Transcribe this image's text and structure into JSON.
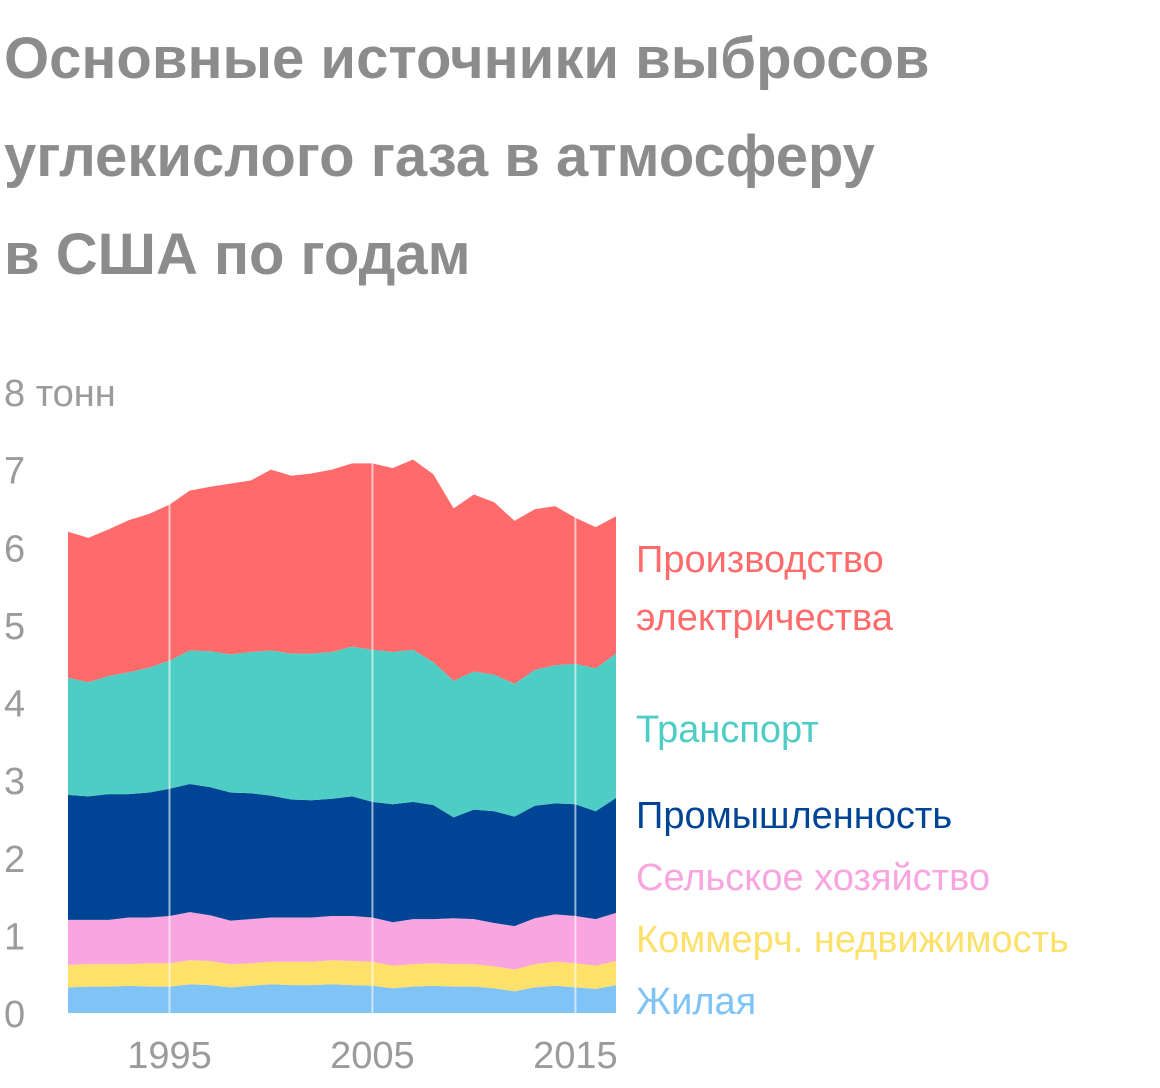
{
  "chart_data": {
    "type": "area",
    "stacked": true,
    "title_lines": [
      "Основные источники выбросов",
      "углекислого газа в атмосферу",
      "в США по годам"
    ],
    "y_unit_label": "8 тонн",
    "ylim": [
      0,
      8
    ],
    "y_ticks": [
      "0",
      "1",
      "2",
      "3",
      "4",
      "5",
      "6",
      "7"
    ],
    "xlim": [
      1990,
      2017
    ],
    "x_ticks": [
      {
        "label": "1995",
        "value": 1995
      },
      {
        "label": "2005",
        "value": 2005
      },
      {
        "label": "2015",
        "value": 2015
      }
    ],
    "x": [
      1990,
      1991,
      1992,
      1993,
      1994,
      1995,
      1996,
      1997,
      1998,
      1999,
      2000,
      2001,
      2002,
      2003,
      2004,
      2005,
      2006,
      2007,
      2008,
      2009,
      2010,
      2011,
      2012,
      2013,
      2014,
      2015,
      2016,
      2017
    ],
    "series": [
      {
        "name": "Жилая",
        "color": "#7fc3f7",
        "values": [
          0.33,
          0.34,
          0.34,
          0.35,
          0.34,
          0.34,
          0.37,
          0.36,
          0.33,
          0.35,
          0.37,
          0.36,
          0.36,
          0.37,
          0.36,
          0.35,
          0.32,
          0.34,
          0.35,
          0.34,
          0.34,
          0.32,
          0.28,
          0.33,
          0.35,
          0.33,
          0.31,
          0.36
        ]
      },
      {
        "name": "Коммерч. недвижимость",
        "color": "#fde16a",
        "values": [
          0.29,
          0.29,
          0.29,
          0.28,
          0.3,
          0.3,
          0.31,
          0.31,
          0.3,
          0.29,
          0.29,
          0.3,
          0.3,
          0.31,
          0.31,
          0.31,
          0.29,
          0.29,
          0.29,
          0.29,
          0.29,
          0.28,
          0.28,
          0.3,
          0.31,
          0.31,
          0.3,
          0.31
        ]
      },
      {
        "name": "Сельское хозяйство",
        "color": "#f9a5e0",
        "values": [
          0.58,
          0.57,
          0.57,
          0.6,
          0.59,
          0.61,
          0.62,
          0.59,
          0.56,
          0.57,
          0.57,
          0.57,
          0.57,
          0.57,
          0.58,
          0.57,
          0.56,
          0.58,
          0.57,
          0.59,
          0.58,
          0.56,
          0.56,
          0.59,
          0.61,
          0.61,
          0.6,
          0.62
        ]
      },
      {
        "name": "Промышленность",
        "color": "#004595",
        "values": [
          1.61,
          1.59,
          1.62,
          1.59,
          1.61,
          1.64,
          1.65,
          1.65,
          1.65,
          1.62,
          1.57,
          1.52,
          1.51,
          1.51,
          1.54,
          1.49,
          1.52,
          1.51,
          1.47,
          1.3,
          1.41,
          1.44,
          1.41,
          1.45,
          1.43,
          1.44,
          1.39,
          1.48
        ]
      },
      {
        "name": "Транспорт",
        "color": "#4ecdc4",
        "values": [
          1.51,
          1.47,
          1.52,
          1.57,
          1.61,
          1.65,
          1.72,
          1.75,
          1.78,
          1.82,
          1.87,
          1.88,
          1.89,
          1.89,
          1.93,
          1.96,
          1.96,
          1.96,
          1.84,
          1.76,
          1.78,
          1.76,
          1.71,
          1.75,
          1.78,
          1.81,
          1.84,
          1.86
        ]
      },
      {
        "name": "Производство электричества",
        "color": "#ff6b6b",
        "values": [
          1.88,
          1.86,
          1.89,
          1.96,
          1.98,
          2.01,
          2.06,
          2.12,
          2.2,
          2.21,
          2.33,
          2.29,
          2.32,
          2.35,
          2.36,
          2.4,
          2.37,
          2.45,
          2.42,
          2.22,
          2.28,
          2.22,
          2.1,
          2.07,
          2.05,
          1.88,
          1.82,
          1.77
        ]
      }
    ],
    "legend_labels": [
      {
        "lines": [
          "Производство",
          "электричества"
        ],
        "color": "#ff6b6b"
      },
      {
        "lines": [
          "Транспорт"
        ],
        "color": "#4ecdc4"
      },
      {
        "lines": [
          "Промышленность"
        ],
        "color": "#004595"
      },
      {
        "lines": [
          "Сельское хозяйство"
        ],
        "color": "#f9a5e0"
      },
      {
        "lines": [
          "Коммерч. недвижимость"
        ],
        "color": "#fde16a"
      },
      {
        "lines": [
          "Жилая"
        ],
        "color": "#7fc3f7"
      }
    ],
    "grid": "vertical lines at x ticks",
    "legend_placement": "right"
  }
}
